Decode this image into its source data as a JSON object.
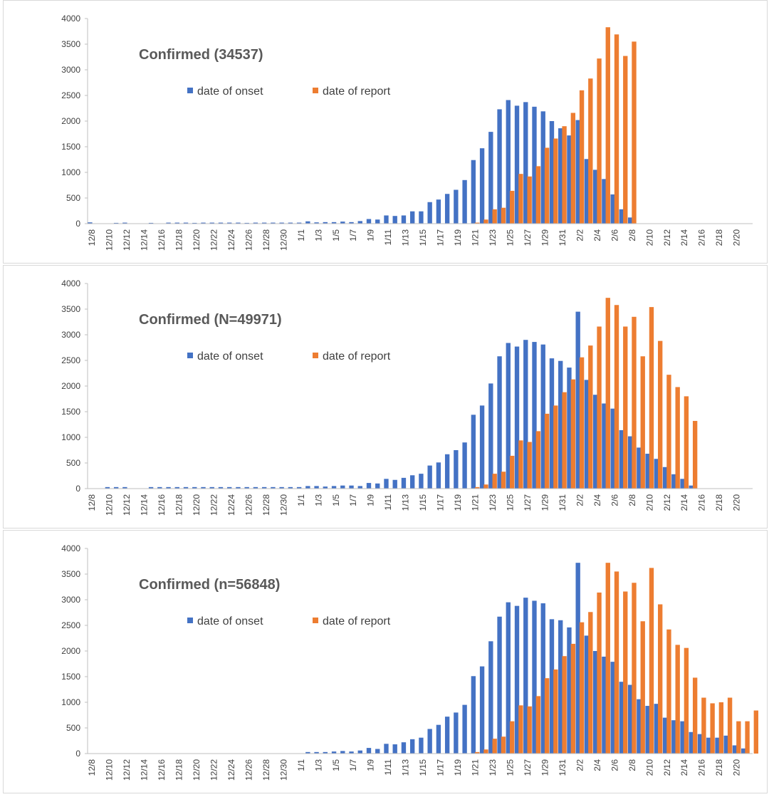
{
  "legend_labels": {
    "onset": "date of onset",
    "report": "date of report"
  },
  "colors": {
    "onset": "#4472C4",
    "report": "#ED7D31",
    "axis": "#bfbfbf",
    "text": "#404040",
    "title": "#595959"
  },
  "chart_data": [
    {
      "type": "bar",
      "title": "Confirmed (34537)",
      "xlabel": "",
      "ylabel": "",
      "ylim": [
        0,
        4000
      ],
      "yticks": [
        "0",
        "500",
        "1000",
        "1500",
        "2000",
        "2500",
        "3000",
        "3500",
        "4000"
      ],
      "grid": false,
      "legend": "top-center",
      "x_start": "12/8",
      "x_end": "2/21",
      "tick_labels": [
        "12/8",
        "12/10",
        "12/12",
        "12/14",
        "12/16",
        "12/18",
        "12/20",
        "12/22",
        "12/24",
        "12/26",
        "12/28",
        "12/30",
        "1/1",
        "1/3",
        "1/5",
        "1/7",
        "1/9",
        "1/11",
        "1/13",
        "1/15",
        "1/17",
        "1/19",
        "1/21",
        "1/23",
        "1/25",
        "1/27",
        "1/29",
        "1/31",
        "2/2",
        "2/4",
        "2/6",
        "2/8",
        "2/10",
        "2/12",
        "2/14",
        "2/16",
        "2/18",
        "2/20"
      ],
      "series": [
        {
          "name": "date of onset",
          "values": [
            25,
            0,
            0,
            15,
            20,
            0,
            0,
            15,
            0,
            20,
            20,
            20,
            15,
            20,
            20,
            20,
            20,
            20,
            15,
            20,
            20,
            20,
            20,
            20,
            20,
            45,
            25,
            30,
            30,
            40,
            30,
            50,
            90,
            80,
            160,
            150,
            160,
            240,
            240,
            420,
            470,
            580,
            660,
            850,
            1240,
            1470,
            1790,
            2230,
            2410,
            2300,
            2370,
            2280,
            2190,
            2000,
            1860,
            1720,
            2020,
            1260,
            1050,
            870,
            570,
            280,
            120,
            0,
            0,
            0,
            0,
            0,
            0,
            0,
            0,
            0,
            0,
            0,
            0,
            0
          ]
        },
        {
          "name": "date of report",
          "values": [
            0,
            0,
            0,
            0,
            0,
            0,
            0,
            0,
            0,
            0,
            0,
            0,
            0,
            0,
            0,
            0,
            0,
            0,
            0,
            0,
            0,
            0,
            0,
            0,
            0,
            0,
            0,
            0,
            0,
            0,
            0,
            0,
            0,
            0,
            0,
            0,
            0,
            0,
            0,
            0,
            0,
            0,
            0,
            0,
            20,
            80,
            280,
            310,
            640,
            970,
            920,
            1120,
            1480,
            1660,
            1900,
            2160,
            2600,
            2830,
            3220,
            3830,
            3690,
            3270,
            3550,
            0,
            0,
            0,
            0,
            0,
            0,
            0,
            0,
            0,
            0,
            0,
            0,
            0
          ]
        }
      ]
    },
    {
      "type": "bar",
      "title": "Confirmed (N=49971)",
      "xlabel": "",
      "ylabel": "",
      "ylim": [
        0,
        4000
      ],
      "yticks": [
        "0",
        "500",
        "1000",
        "1500",
        "2000",
        "2500",
        "3000",
        "3500",
        "4000"
      ],
      "grid": false,
      "legend": "top-center",
      "x_start": "12/8",
      "x_end": "2/21",
      "tick_labels": [
        "12/8",
        "12/10",
        "12/12",
        "12/14",
        "12/16",
        "12/18",
        "12/20",
        "12/22",
        "12/24",
        "12/26",
        "12/28",
        "12/30",
        "1/1",
        "1/3",
        "1/5",
        "1/7",
        "1/9",
        "1/11",
        "1/13",
        "1/15",
        "1/17",
        "1/19",
        "1/21",
        "1/23",
        "1/25",
        "1/27",
        "1/29",
        "1/31",
        "2/2",
        "2/4",
        "2/6",
        "2/8",
        "2/10",
        "2/12",
        "2/14",
        "2/16",
        "2/18",
        "2/20"
      ],
      "series": [
        {
          "name": "date of onset",
          "values": [
            0,
            0,
            30,
            30,
            30,
            0,
            0,
            30,
            30,
            30,
            30,
            30,
            30,
            30,
            30,
            30,
            30,
            30,
            30,
            30,
            30,
            30,
            30,
            30,
            30,
            50,
            50,
            40,
            50,
            60,
            60,
            50,
            110,
            100,
            190,
            170,
            210,
            260,
            290,
            450,
            510,
            670,
            750,
            900,
            1440,
            1620,
            2050,
            2580,
            2840,
            2770,
            2900,
            2860,
            2810,
            2540,
            2490,
            2360,
            3450,
            2120,
            1830,
            1660,
            1560,
            1140,
            1020,
            800,
            680,
            580,
            420,
            280,
            190,
            60,
            0,
            0,
            0,
            0,
            0,
            0
          ]
        },
        {
          "name": "date of report",
          "values": [
            0,
            0,
            0,
            0,
            0,
            0,
            0,
            0,
            0,
            0,
            0,
            0,
            0,
            0,
            0,
            0,
            0,
            0,
            0,
            0,
            0,
            0,
            0,
            0,
            0,
            0,
            0,
            0,
            0,
            0,
            0,
            0,
            0,
            0,
            0,
            0,
            0,
            0,
            0,
            0,
            0,
            0,
            0,
            0,
            30,
            80,
            290,
            330,
            640,
            940,
            910,
            1120,
            1460,
            1620,
            1880,
            2130,
            2560,
            2790,
            3160,
            3720,
            3580,
            3160,
            3350,
            2580,
            3540,
            2880,
            2220,
            1980,
            1800,
            1320,
            0,
            0,
            0,
            0,
            0,
            0
          ]
        }
      ]
    },
    {
      "type": "bar",
      "title": "Confirmed (n=56848)",
      "xlabel": "",
      "ylabel": "",
      "ylim": [
        0,
        4000
      ],
      "yticks": [
        "0",
        "500",
        "1000",
        "1500",
        "2000",
        "2500",
        "3000",
        "3500",
        "4000"
      ],
      "grid": false,
      "legend": "top-center",
      "x_start": "12/8",
      "x_end": "2/21",
      "tick_labels": [
        "12/8",
        "12/10",
        "12/12",
        "12/14",
        "12/16",
        "12/18",
        "12/20",
        "12/22",
        "12/24",
        "12/26",
        "12/28",
        "12/30",
        "1/1",
        "1/3",
        "1/5",
        "1/7",
        "1/9",
        "1/11",
        "1/13",
        "1/15",
        "1/17",
        "1/19",
        "1/21",
        "1/23",
        "1/25",
        "1/27",
        "1/29",
        "1/31",
        "2/2",
        "2/4",
        "2/6",
        "2/8",
        "2/10",
        "2/12",
        "2/14",
        "2/16",
        "2/18",
        "2/20"
      ],
      "series": [
        {
          "name": "date of onset",
          "values": [
            0,
            0,
            0,
            0,
            0,
            0,
            0,
            0,
            0,
            0,
            0,
            0,
            0,
            0,
            0,
            0,
            0,
            0,
            0,
            0,
            0,
            0,
            0,
            0,
            0,
            30,
            30,
            30,
            40,
            50,
            40,
            60,
            110,
            90,
            190,
            180,
            220,
            280,
            310,
            480,
            560,
            720,
            800,
            950,
            1510,
            1700,
            2190,
            2670,
            2950,
            2880,
            3040,
            2980,
            2930,
            2620,
            2600,
            2460,
            3720,
            2300,
            2000,
            1890,
            1790,
            1400,
            1340,
            1060,
            930,
            970,
            700,
            650,
            630,
            420,
            380,
            310,
            310,
            350,
            160,
            100
          ]
        },
        {
          "name": "date of report",
          "values": [
            0,
            0,
            0,
            0,
            0,
            0,
            0,
            0,
            0,
            0,
            0,
            0,
            0,
            0,
            0,
            0,
            0,
            0,
            0,
            0,
            0,
            0,
            0,
            0,
            0,
            0,
            0,
            0,
            0,
            0,
            0,
            0,
            0,
            0,
            0,
            0,
            0,
            0,
            0,
            0,
            0,
            0,
            0,
            0,
            30,
            80,
            290,
            330,
            630,
            940,
            920,
            1120,
            1470,
            1640,
            1900,
            2140,
            2560,
            2760,
            3140,
            3720,
            3550,
            3160,
            3330,
            2580,
            3620,
            2910,
            2420,
            2120,
            2060,
            1480,
            1090,
            980,
            1000,
            1090,
            630,
            630,
            840
          ]
        }
      ]
    }
  ]
}
